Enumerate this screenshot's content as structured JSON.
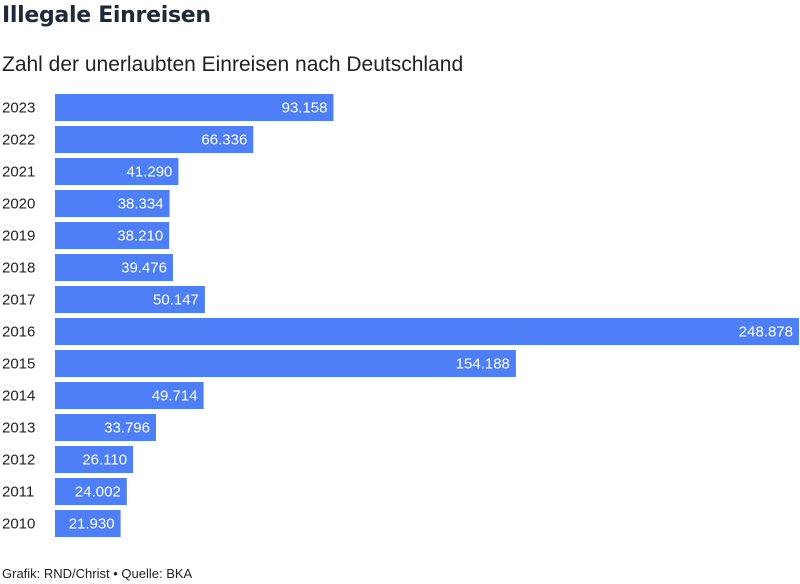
{
  "title": "Illegale Einreisen",
  "subtitle": "Zahl der unerlaubten Einreisen nach Deutschland",
  "footer": "Grafik: RND/Christ • Quelle: BKA",
  "colors": {
    "bar": "#4f7ff7",
    "value_text": "#ffffff",
    "label_text": "#222222"
  },
  "chart_data": {
    "type": "bar",
    "orientation": "horizontal",
    "title": "Illegale Einreisen",
    "subtitle": "Zahl der unerlaubten Einreisen nach Deutschland",
    "categories": [
      "2023",
      "2022",
      "2021",
      "2020",
      "2019",
      "2018",
      "2017",
      "2016",
      "2015",
      "2014",
      "2013",
      "2012",
      "2011",
      "2010"
    ],
    "values": [
      93158,
      66336,
      41290,
      38334,
      38210,
      39476,
      50147,
      248878,
      154188,
      49714,
      33796,
      26110,
      24002,
      21930
    ],
    "value_labels": [
      "93.158",
      "66.336",
      "41.290",
      "38.334",
      "38.210",
      "39.476",
      "50.147",
      "248.878",
      "154.188",
      "49.714",
      "33.796",
      "26.110",
      "24.002",
      "21.930"
    ],
    "xlim": [
      0,
      248878
    ],
    "grid": false,
    "legend": "none"
  }
}
